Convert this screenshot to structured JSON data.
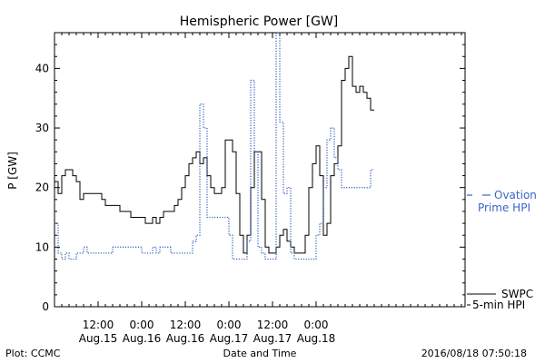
{
  "chart_data": {
    "type": "line",
    "title": "Hemispheric Power [GW]",
    "xlabel": "Date and Time",
    "ylabel": "P [GW]",
    "ylim": [
      0,
      46
    ],
    "xlim": [
      0,
      113
    ],
    "yticks": [
      0,
      10,
      20,
      30,
      40
    ],
    "xticks": [
      {
        "x": 12,
        "time": "12:00",
        "date": "Aug.15"
      },
      {
        "x": 24,
        "time": "0:00",
        "date": "Aug.16"
      },
      {
        "x": 36,
        "time": "12:00",
        "date": "Aug.16"
      },
      {
        "x": 48,
        "time": "0:00",
        "date": "Aug.17"
      },
      {
        "x": 60,
        "time": "12:00",
        "date": "Aug.17"
      },
      {
        "x": 72,
        "time": "0:00",
        "date": "Aug.18"
      }
    ],
    "grid": false,
    "series": [
      {
        "name": "SWPC 5-min HPI",
        "style": "solid",
        "color": "#000000",
        "legend": [
          "SWPC",
          "5-min HPI"
        ],
        "points": [
          [
            0,
            21
          ],
          [
            1,
            19
          ],
          [
            2,
            22
          ],
          [
            3,
            23
          ],
          [
            4,
            23
          ],
          [
            5,
            22
          ],
          [
            6,
            21
          ],
          [
            7,
            18
          ],
          [
            8,
            19
          ],
          [
            9,
            19
          ],
          [
            10,
            19
          ],
          [
            11,
            19
          ],
          [
            12,
            19
          ],
          [
            13,
            18
          ],
          [
            14,
            17
          ],
          [
            15,
            17
          ],
          [
            16,
            17
          ],
          [
            17,
            17
          ],
          [
            18,
            16
          ],
          [
            19,
            16
          ],
          [
            20,
            16
          ],
          [
            21,
            15
          ],
          [
            22,
            15
          ],
          [
            23,
            15
          ],
          [
            24,
            15
          ],
          [
            25,
            14
          ],
          [
            26,
            14
          ],
          [
            27,
            15
          ],
          [
            28,
            14
          ],
          [
            29,
            15
          ],
          [
            30,
            16
          ],
          [
            31,
            16
          ],
          [
            32,
            16
          ],
          [
            33,
            17
          ],
          [
            34,
            18
          ],
          [
            35,
            20
          ],
          [
            36,
            22
          ],
          [
            37,
            24
          ],
          [
            38,
            25
          ],
          [
            39,
            26
          ],
          [
            40,
            24
          ],
          [
            41,
            25
          ],
          [
            42,
            22
          ],
          [
            43,
            20
          ],
          [
            44,
            19
          ],
          [
            45,
            19
          ],
          [
            46,
            20
          ],
          [
            47,
            28
          ],
          [
            48,
            28
          ],
          [
            49,
            26
          ],
          [
            50,
            19
          ],
          [
            51,
            12
          ],
          [
            52,
            9
          ],
          [
            53,
            12
          ],
          [
            54,
            20
          ],
          [
            55,
            26
          ],
          [
            56,
            26
          ],
          [
            57,
            18
          ],
          [
            58,
            10
          ],
          [
            59,
            9
          ],
          [
            60,
            9
          ],
          [
            61,
            10
          ],
          [
            62,
            12
          ],
          [
            63,
            13
          ],
          [
            64,
            11
          ],
          [
            65,
            10
          ],
          [
            66,
            9
          ],
          [
            67,
            9
          ],
          [
            68,
            9
          ],
          [
            69,
            12
          ],
          [
            70,
            20
          ],
          [
            71,
            24
          ],
          [
            72,
            27
          ],
          [
            73,
            22
          ],
          [
            74,
            12
          ],
          [
            75,
            14
          ],
          [
            76,
            22
          ],
          [
            77,
            24
          ],
          [
            78,
            27
          ],
          [
            79,
            38
          ],
          [
            80,
            40
          ],
          [
            81,
            42
          ],
          [
            82,
            37
          ],
          [
            83,
            36
          ],
          [
            84,
            37
          ],
          [
            85,
            36
          ],
          [
            86,
            35
          ],
          [
            87,
            33
          ]
        ]
      },
      {
        "name": "Ovation Prime HPI",
        "style": "dotted",
        "color": "#3a66c4",
        "legend": [
          "Ovation",
          "Prime HPI"
        ],
        "points": [
          [
            0,
            14
          ],
          [
            1,
            9
          ],
          [
            2,
            8
          ],
          [
            3,
            9
          ],
          [
            4,
            8
          ],
          [
            5,
            8
          ],
          [
            6,
            9
          ],
          [
            7,
            9
          ],
          [
            8,
            10
          ],
          [
            9,
            9
          ],
          [
            10,
            9
          ],
          [
            11,
            9
          ],
          [
            12,
            9
          ],
          [
            13,
            9
          ],
          [
            14,
            9
          ],
          [
            15,
            9
          ],
          [
            16,
            10
          ],
          [
            17,
            10
          ],
          [
            18,
            10
          ],
          [
            19,
            10
          ],
          [
            20,
            10
          ],
          [
            21,
            10
          ],
          [
            22,
            10
          ],
          [
            23,
            10
          ],
          [
            24,
            9
          ],
          [
            25,
            9
          ],
          [
            26,
            9
          ],
          [
            27,
            10
          ],
          [
            28,
            9
          ],
          [
            29,
            10
          ],
          [
            30,
            10
          ],
          [
            31,
            10
          ],
          [
            32,
            9
          ],
          [
            33,
            9
          ],
          [
            34,
            9
          ],
          [
            35,
            9
          ],
          [
            36,
            9
          ],
          [
            37,
            9
          ],
          [
            38,
            11
          ],
          [
            39,
            12
          ],
          [
            40,
            34
          ],
          [
            41,
            30
          ],
          [
            42,
            15
          ],
          [
            43,
            15
          ],
          [
            44,
            15
          ],
          [
            45,
            15
          ],
          [
            46,
            15
          ],
          [
            47,
            15
          ],
          [
            48,
            12
          ],
          [
            49,
            8
          ],
          [
            50,
            8
          ],
          [
            51,
            8
          ],
          [
            52,
            8
          ],
          [
            53,
            11
          ],
          [
            54,
            38
          ],
          [
            55,
            26
          ],
          [
            56,
            10
          ],
          [
            57,
            9
          ],
          [
            58,
            8
          ],
          [
            59,
            8
          ],
          [
            60,
            8
          ],
          [
            61,
            46
          ],
          [
            62,
            31
          ],
          [
            63,
            19
          ],
          [
            64,
            20
          ],
          [
            65,
            9
          ],
          [
            66,
            8
          ],
          [
            67,
            8
          ],
          [
            68,
            8
          ],
          [
            69,
            8
          ],
          [
            70,
            8
          ],
          [
            71,
            8
          ],
          [
            72,
            12
          ],
          [
            73,
            14
          ],
          [
            74,
            20
          ],
          [
            75,
            28
          ],
          [
            76,
            30
          ],
          [
            77,
            25
          ],
          [
            78,
            23
          ],
          [
            79,
            20
          ],
          [
            80,
            20
          ],
          [
            81,
            20
          ],
          [
            82,
            20
          ],
          [
            83,
            20
          ],
          [
            84,
            20
          ],
          [
            85,
            20
          ],
          [
            86,
            20
          ],
          [
            87,
            23
          ]
        ]
      }
    ]
  },
  "footer": {
    "left": "Plot: CCMC",
    "right": "2016/08/18 07:50:18"
  }
}
